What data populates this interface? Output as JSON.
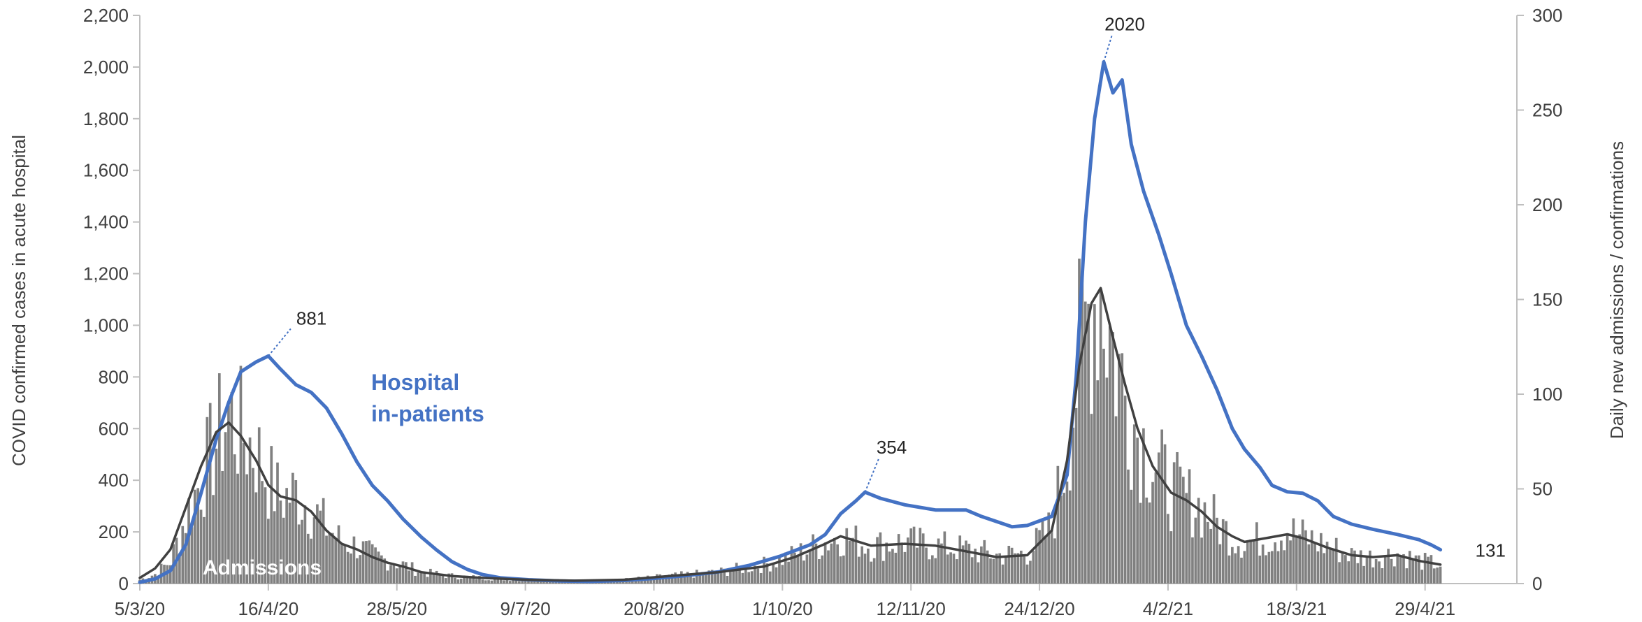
{
  "chart_data": {
    "type": "bar+line",
    "y_left": {
      "label": "COVID confirmed cases in acute hospital",
      "range": [
        0,
        2200
      ],
      "ticks": [
        "0",
        "200",
        "400",
        "600",
        "800",
        "1,000",
        "1,200",
        "1,400",
        "1,600",
        "1,800",
        "2,000",
        "2,200"
      ]
    },
    "y_right": {
      "label": "Daily new admissions / confirmations",
      "range": [
        0,
        300
      ],
      "ticks": [
        "0",
        "50",
        "100",
        "150",
        "200",
        "250",
        "300"
      ]
    },
    "x_axis": {
      "start_date": "2020-03-05",
      "end_date": "2021-05-06",
      "tick_labels": [
        "5/3/20",
        "16/4/20",
        "28/5/20",
        "9/7/20",
        "20/8/20",
        "1/10/20",
        "12/11/20",
        "24/12/20",
        "4/2/21",
        "18/3/21",
        "29/4/21"
      ]
    },
    "series": [
      {
        "name": "Hospital in-patients",
        "axis": "left",
        "type": "line",
        "color": "#4472c4",
        "points": [
          [
            "2020-03-05",
            5
          ],
          [
            "2020-03-10",
            18
          ],
          [
            "2020-03-15",
            50
          ],
          [
            "2020-03-20",
            150
          ],
          [
            "2020-03-25",
            350
          ],
          [
            "2020-03-30",
            560
          ],
          [
            "2020-04-03",
            700
          ],
          [
            "2020-04-07",
            820
          ],
          [
            "2020-04-12",
            858
          ],
          [
            "2020-04-16",
            881
          ],
          [
            "2020-04-20",
            830
          ],
          [
            "2020-04-25",
            770
          ],
          [
            "2020-04-30",
            740
          ],
          [
            "2020-05-05",
            680
          ],
          [
            "2020-05-10",
            580
          ],
          [
            "2020-05-15",
            470
          ],
          [
            "2020-05-20",
            380
          ],
          [
            "2020-05-25",
            320
          ],
          [
            "2020-05-30",
            250
          ],
          [
            "2020-06-05",
            180
          ],
          [
            "2020-06-10",
            130
          ],
          [
            "2020-06-15",
            85
          ],
          [
            "2020-06-20",
            55
          ],
          [
            "2020-06-25",
            35
          ],
          [
            "2020-07-01",
            22
          ],
          [
            "2020-07-10",
            15
          ],
          [
            "2020-07-20",
            10
          ],
          [
            "2020-07-30",
            8
          ],
          [
            "2020-08-10",
            12
          ],
          [
            "2020-08-20",
            20
          ],
          [
            "2020-08-30",
            30
          ],
          [
            "2020-09-10",
            45
          ],
          [
            "2020-09-20",
            70
          ],
          [
            "2020-09-30",
            105
          ],
          [
            "2020-10-10",
            150
          ],
          [
            "2020-10-15",
            190
          ],
          [
            "2020-10-20",
            270
          ],
          [
            "2020-10-25",
            320
          ],
          [
            "2020-10-28",
            354
          ],
          [
            "2020-11-02",
            330
          ],
          [
            "2020-11-10",
            305
          ],
          [
            "2020-11-20",
            285
          ],
          [
            "2020-11-30",
            285
          ],
          [
            "2020-12-05",
            260
          ],
          [
            "2020-12-15",
            220
          ],
          [
            "2020-12-20",
            225
          ],
          [
            "2020-12-28",
            260
          ],
          [
            "2021-01-02",
            420
          ],
          [
            "2021-01-05",
            800
          ],
          [
            "2021-01-08",
            1400
          ],
          [
            "2021-01-11",
            1800
          ],
          [
            "2021-01-14",
            2020
          ],
          [
            "2021-01-17",
            1900
          ],
          [
            "2021-01-20",
            1950
          ],
          [
            "2021-01-23",
            1700
          ],
          [
            "2021-01-27",
            1520
          ],
          [
            "2021-02-01",
            1350
          ],
          [
            "2021-02-05",
            1200
          ],
          [
            "2021-02-10",
            1000
          ],
          [
            "2021-02-15",
            880
          ],
          [
            "2021-02-20",
            750
          ],
          [
            "2021-02-25",
            600
          ],
          [
            "2021-03-01",
            520
          ],
          [
            "2021-03-06",
            450
          ],
          [
            "2021-03-10",
            380
          ],
          [
            "2021-03-15",
            355
          ],
          [
            "2021-03-20",
            350
          ],
          [
            "2021-03-25",
            320
          ],
          [
            "2021-03-30",
            260
          ],
          [
            "2021-04-05",
            230
          ],
          [
            "2021-04-12",
            210
          ],
          [
            "2021-04-20",
            190
          ],
          [
            "2021-04-27",
            170
          ],
          [
            "2021-05-01",
            150
          ],
          [
            "2021-05-04",
            131
          ]
        ]
      },
      {
        "name": "Admissions",
        "axis": "right",
        "type": "bar",
        "color": "#808080",
        "points": [
          [
            "2020-03-05",
            2
          ],
          [
            "2020-03-10",
            5
          ],
          [
            "2020-03-15",
            12
          ],
          [
            "2020-03-20",
            35
          ],
          [
            "2020-03-25",
            55
          ],
          [
            "2020-03-30",
            75
          ],
          [
            "2020-04-03",
            90
          ],
          [
            "2020-04-07",
            80
          ],
          [
            "2020-04-12",
            70
          ],
          [
            "2020-04-16",
            55
          ],
          [
            "2020-04-20",
            45
          ],
          [
            "2020-04-25",
            48
          ],
          [
            "2020-04-30",
            40
          ],
          [
            "2020-05-05",
            30
          ],
          [
            "2020-05-10",
            22
          ],
          [
            "2020-05-15",
            20
          ],
          [
            "2020-05-20",
            15
          ],
          [
            "2020-05-25",
            12
          ],
          [
            "2020-05-30",
            10
          ],
          [
            "2020-06-05",
            6
          ],
          [
            "2020-06-15",
            4
          ],
          [
            "2020-06-25",
            3
          ],
          [
            "2020-07-10",
            2
          ],
          [
            "2020-07-25",
            1
          ],
          [
            "2020-08-10",
            2
          ],
          [
            "2020-08-25",
            4
          ],
          [
            "2020-09-10",
            6
          ],
          [
            "2020-09-25",
            10
          ],
          [
            "2020-10-05",
            15
          ],
          [
            "2020-10-15",
            22
          ],
          [
            "2020-10-20",
            25
          ],
          [
            "2020-10-30",
            20
          ],
          [
            "2020-11-10",
            22
          ],
          [
            "2020-11-20",
            20
          ],
          [
            "2020-11-30",
            18
          ],
          [
            "2020-12-10",
            15
          ],
          [
            "2020-12-20",
            16
          ],
          [
            "2020-12-28",
            30
          ],
          [
            "2021-01-02",
            70
          ],
          [
            "2021-01-06",
            120
          ],
          [
            "2021-01-10",
            150
          ],
          [
            "2021-01-13",
            158
          ],
          [
            "2021-01-17",
            125
          ],
          [
            "2021-01-21",
            100
          ],
          [
            "2021-01-25",
            80
          ],
          [
            "2021-01-30",
            65
          ],
          [
            "2021-02-05",
            50
          ],
          [
            "2021-02-10",
            45
          ],
          [
            "2021-02-15",
            40
          ],
          [
            "2021-02-20",
            32
          ],
          [
            "2021-02-25",
            25
          ],
          [
            "2021-03-01",
            22
          ],
          [
            "2021-03-08",
            24
          ],
          [
            "2021-03-15",
            28
          ],
          [
            "2021-03-20",
            25
          ],
          [
            "2021-03-28",
            20
          ],
          [
            "2021-04-05",
            15
          ],
          [
            "2021-04-12",
            14
          ],
          [
            "2021-04-20",
            16
          ],
          [
            "2021-04-27",
            12
          ],
          [
            "2021-05-04",
            10
          ]
        ]
      },
      {
        "name": "",
        "axis": "right",
        "type": "line",
        "color": "#404040",
        "points": [
          [
            "2020-03-05",
            3
          ],
          [
            "2020-03-10",
            8
          ],
          [
            "2020-03-15",
            18
          ],
          [
            "2020-03-20",
            40
          ],
          [
            "2020-03-25",
            62
          ],
          [
            "2020-03-30",
            80
          ],
          [
            "2020-04-03",
            85
          ],
          [
            "2020-04-07",
            78
          ],
          [
            "2020-04-12",
            65
          ],
          [
            "2020-04-16",
            52
          ],
          [
            "2020-04-20",
            46
          ],
          [
            "2020-04-25",
            44
          ],
          [
            "2020-04-30",
            38
          ],
          [
            "2020-05-05",
            28
          ],
          [
            "2020-05-10",
            21
          ],
          [
            "2020-05-15",
            18
          ],
          [
            "2020-05-20",
            14
          ],
          [
            "2020-05-25",
            11
          ],
          [
            "2020-05-30",
            9
          ],
          [
            "2020-06-05",
            6
          ],
          [
            "2020-06-15",
            4
          ],
          [
            "2020-06-25",
            3
          ],
          [
            "2020-07-10",
            2
          ],
          [
            "2020-07-25",
            1.5
          ],
          [
            "2020-08-10",
            2
          ],
          [
            "2020-08-25",
            4
          ],
          [
            "2020-09-10",
            6
          ],
          [
            "2020-09-25",
            9
          ],
          [
            "2020-10-05",
            14
          ],
          [
            "2020-10-15",
            21
          ],
          [
            "2020-10-20",
            25
          ],
          [
            "2020-10-30",
            20
          ],
          [
            "2020-11-10",
            21
          ],
          [
            "2020-11-20",
            20
          ],
          [
            "2020-11-30",
            17
          ],
          [
            "2020-12-10",
            14
          ],
          [
            "2020-12-20",
            15
          ],
          [
            "2020-12-28",
            28
          ],
          [
            "2021-01-02",
            65
          ],
          [
            "2021-01-06",
            115
          ],
          [
            "2021-01-10",
            148
          ],
          [
            "2021-01-13",
            156
          ],
          [
            "2021-01-17",
            130
          ],
          [
            "2021-01-21",
            105
          ],
          [
            "2021-01-25",
            82
          ],
          [
            "2021-01-30",
            62
          ],
          [
            "2021-02-05",
            48
          ],
          [
            "2021-02-10",
            44
          ],
          [
            "2021-02-15",
            38
          ],
          [
            "2021-02-20",
            30
          ],
          [
            "2021-02-25",
            25
          ],
          [
            "2021-03-01",
            22
          ],
          [
            "2021-03-08",
            24
          ],
          [
            "2021-03-15",
            26
          ],
          [
            "2021-03-20",
            24
          ],
          [
            "2021-03-28",
            19
          ],
          [
            "2021-04-05",
            15
          ],
          [
            "2021-04-12",
            14
          ],
          [
            "2021-04-20",
            15
          ],
          [
            "2021-04-27",
            12
          ],
          [
            "2021-05-04",
            10
          ]
        ]
      }
    ],
    "callouts": [
      {
        "date": "2020-04-16",
        "value": 881,
        "label": "881"
      },
      {
        "date": "2020-10-28",
        "value": 354,
        "label": "354"
      },
      {
        "date": "2021-01-14",
        "value": 2020,
        "label": "2020"
      },
      {
        "date": "2021-05-04",
        "value": 131,
        "label": "131"
      }
    ],
    "series_labels": {
      "hospital": [
        "Hospital",
        "in-patients"
      ],
      "admissions": "Admissions"
    }
  }
}
